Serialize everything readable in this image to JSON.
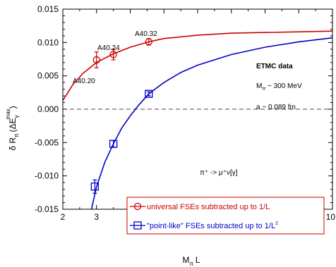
{
  "chart_data": {
    "type": "line",
    "title": "",
    "xlabel": "M_π L",
    "ylabel": "δ R_π (ΔE_γ^max)",
    "xlim": [
      2,
      10
    ],
    "ylim": [
      -0.015,
      0.015
    ],
    "x_ticks": [
      "2",
      "3",
      "4",
      "5",
      "6",
      "7",
      "8",
      "9",
      "10"
    ],
    "y_ticks": [
      "-0.015",
      "-0.010",
      "-0.005",
      "0.000",
      "0.005",
      "0.010",
      "0.015"
    ],
    "grid": false,
    "zero_line": "dashed",
    "legend_position": "bottom-right",
    "annotations": {
      "heading": "ETMC data",
      "mass": "Mπ ~ 300 MeV",
      "mass_main": "M",
      "mass_sub": "π",
      "mass_rest": " ~ 300 MeV",
      "spacing": "a ~ 0.089 fm",
      "process": "π⁺ -> μ⁺ν[γ]",
      "point_labels": [
        "A40.20",
        "A40.24",
        "A40.32"
      ]
    },
    "series": [
      {
        "name": "universal FSEs subtracted up to 1/L",
        "color": "#cc0000",
        "marker": "circle",
        "points": [
          {
            "x": 3.0,
            "y": 0.0074,
            "err": 0.0012
          },
          {
            "x": 3.5,
            "y": 0.0082,
            "err": 0.0008
          },
          {
            "x": 4.55,
            "y": 0.0101,
            "err": 0.0005
          }
        ],
        "fit": {
          "x": [
            2.0,
            2.3,
            2.6,
            3.0,
            3.5,
            4.0,
            4.55,
            5.0,
            6.0,
            7.0,
            8.0,
            9.0,
            10.0
          ],
          "y": [
            0.0013,
            0.0037,
            0.0054,
            0.007,
            0.0083,
            0.0093,
            0.0101,
            0.0106,
            0.0111,
            0.0114,
            0.0115,
            0.0116,
            0.0117
          ]
        }
      },
      {
        "name": "\"point-like\" FSEs subtracted up to 1/L²",
        "color": "#0000cc",
        "marker": "square",
        "points": [
          {
            "x": 2.95,
            "y": -0.0116,
            "err": 0.001
          },
          {
            "x": 3.5,
            "y": -0.0052,
            "err": 0.0005
          },
          {
            "x": 4.55,
            "y": 0.0023,
            "err": 0.0003
          }
        ],
        "fit": {
          "x": [
            2.85,
            3.0,
            3.25,
            3.5,
            3.75,
            4.0,
            4.25,
            4.55,
            5.0,
            5.5,
            6.0,
            7.0,
            8.0,
            9.0,
            10.0
          ],
          "y": [
            -0.015,
            -0.0116,
            -0.0079,
            -0.0052,
            -0.0028,
            -0.001,
            0.0006,
            0.0023,
            0.004,
            0.0055,
            0.0066,
            0.0082,
            0.0093,
            0.0101,
            0.0107
          ]
        }
      }
    ]
  },
  "legend": {
    "label_1": "universal FSEs subtracted up to 1/L",
    "label_2": "\"point-like\" FSEs subtracted up to 1/L",
    "label_2_sup": "2"
  }
}
